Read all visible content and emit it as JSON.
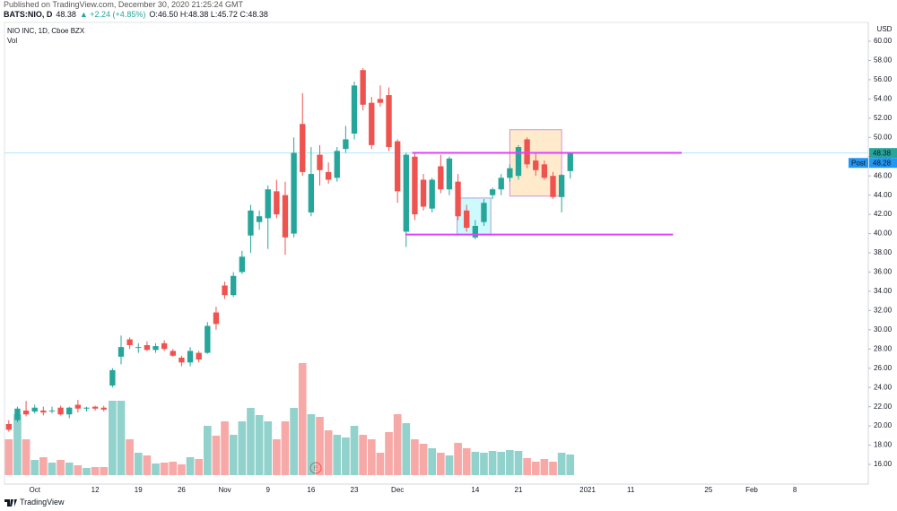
{
  "header": {
    "published": "Published on TradingView.com, December 30, 2020 21:25:24 GMT",
    "symbol": "BATS:NIO, D",
    "last": "48.38",
    "change": "▲ +2.24 (+4.85%)",
    "ohlc_text": "O:46.50 H:48.38 L:45.72 C:48.38"
  },
  "footer": {
    "brand": "TradingView"
  },
  "chart_data": {
    "type": "candlestick",
    "title": "NIO INC, 1D, Cboe BZX",
    "volume_label": "Vol",
    "currency": "USD",
    "earnings_marker": "E",
    "up_color": "#26a69a",
    "down_color": "#ef5350",
    "grid": false,
    "categories": [
      null,
      null,
      null,
      "Oct",
      null,
      null,
      null,
      null,
      null,
      null,
      "12",
      null,
      null,
      null,
      null,
      "19",
      null,
      null,
      null,
      null,
      "26",
      null,
      null,
      null,
      null,
      "Nov",
      null,
      null,
      null,
      null,
      "9",
      null,
      null,
      null,
      null,
      "16",
      null,
      null,
      null,
      null,
      "23",
      null,
      null,
      null,
      null,
      "Dec",
      null,
      null,
      null,
      null,
      null,
      null,
      null,
      null,
      "14",
      null,
      null,
      null,
      null,
      "21",
      null,
      null,
      null,
      null,
      null,
      null,
      null,
      "2021",
      null,
      null,
      null,
      null,
      "11",
      null,
      null,
      null,
      null,
      null,
      null,
      null,
      null,
      "25",
      null,
      null,
      null,
      null,
      "Feb",
      null,
      null,
      null,
      null,
      "8",
      null,
      null,
      null,
      null,
      null,
      null,
      null,
      null
    ],
    "open": [
      20.2,
      20.6,
      21.6,
      21.5,
      21.6,
      21.6,
      21.9,
      21.2,
      22.2,
      21.8,
      22.0,
      21.9,
      24.2,
      27.2,
      29.0,
      28.2,
      28.4,
      27.9,
      28.6,
      27.8,
      27.1,
      26.6,
      27.6,
      27.6,
      31.8,
      34.6,
      33.6,
      36.0,
      39.8,
      41.2,
      41.6,
      44.4,
      44.0,
      40.0,
      51.4,
      42.2,
      48.2,
      46.4,
      45.8,
      48.8,
      50.4,
      57.0,
      53.6,
      54.0,
      54.4,
      49.6,
      40.2,
      48.0,
      45.6,
      42.6,
      47.0,
      44.6,
      45.4,
      42.4,
      39.6,
      41.2,
      44.0,
      44.6,
      45.8,
      46.0,
      49.8,
      47.6,
      47.2,
      46.0,
      43.8,
      46.5,
      null,
      null,
      null,
      null,
      null,
      null,
      null,
      null,
      null,
      null,
      null,
      null,
      null,
      null,
      null,
      null,
      null,
      null,
      null,
      null,
      null,
      null,
      null,
      null,
      null,
      null,
      null,
      null,
      null,
      null,
      null,
      null,
      null,
      null
    ],
    "high": [
      20.6,
      22.0,
      22.6,
      22.2,
      22.0,
      22.0,
      22.1,
      22.0,
      22.7,
      22.0,
      22.1,
      22.1,
      26.0,
      29.4,
      29.2,
      28.6,
      28.8,
      28.6,
      28.9,
      28.0,
      27.3,
      28.2,
      27.8,
      30.8,
      32.4,
      35.0,
      36.0,
      38.2,
      43.0,
      42.4,
      45.0,
      45.6,
      45.4,
      50.0,
      54.6,
      49.0,
      49.2,
      47.4,
      49.0,
      51.2,
      55.8,
      57.2,
      54.2,
      55.4,
      55.2,
      49.8,
      48.4,
      48.4,
      46.2,
      45.8,
      48.2,
      48.0,
      46.2,
      43.0,
      41.4,
      43.6,
      44.8,
      46.2,
      47.2,
      49.2,
      50.0,
      48.4,
      47.6,
      46.4,
      46.2,
      48.38,
      null,
      null,
      null,
      null,
      null,
      null,
      null,
      null,
      null,
      null,
      null,
      null,
      null,
      null,
      null,
      null,
      null,
      null,
      null,
      null,
      null,
      null,
      null,
      null,
      null,
      null,
      null,
      null,
      null,
      null,
      null,
      null,
      null,
      null
    ],
    "low": [
      19.4,
      20.4,
      21.0,
      21.3,
      21.1,
      21.3,
      21.1,
      20.8,
      21.4,
      21.5,
      21.6,
      21.5,
      24.0,
      26.4,
      28.0,
      27.6,
      27.8,
      27.6,
      27.8,
      27.2,
      26.2,
      26.2,
      26.6,
      27.5,
      30.0,
      33.2,
      33.4,
      35.8,
      38.0,
      40.4,
      38.4,
      41.6,
      37.8,
      39.6,
      46.0,
      41.8,
      45.0,
      45.2,
      45.4,
      48.4,
      49.8,
      52.8,
      48.8,
      53.2,
      48.6,
      43.2,
      38.6,
      41.4,
      42.4,
      42.2,
      44.2,
      44.0,
      41.4,
      40.2,
      39.4,
      40.8,
      43.6,
      44.0,
      45.4,
      45.6,
      46.8,
      46.0,
      45.6,
      43.6,
      42.2,
      45.72,
      null,
      null,
      null,
      null,
      null,
      null,
      null,
      null,
      null,
      null,
      null,
      null,
      null,
      null,
      null,
      null,
      null,
      null,
      null,
      null,
      null,
      null,
      null,
      null,
      null,
      null,
      null,
      null,
      null,
      null,
      null,
      null,
      null,
      null
    ],
    "close": [
      19.6,
      21.8,
      21.2,
      21.9,
      21.4,
      21.6,
      21.2,
      21.9,
      21.8,
      21.9,
      21.8,
      21.7,
      25.8,
      28.2,
      28.4,
      28.2,
      27.9,
      28.3,
      28.0,
      27.3,
      26.6,
      27.8,
      26.9,
      30.4,
      30.6,
      33.6,
      35.6,
      37.6,
      42.4,
      41.8,
      44.6,
      42.0,
      39.6,
      48.4,
      46.4,
      46.2,
      46.6,
      45.6,
      48.6,
      49.8,
      55.4,
      53.4,
      49.2,
      53.6,
      49.0,
      44.4,
      48.2,
      42.0,
      42.8,
      45.6,
      44.6,
      47.8,
      41.8,
      40.6,
      40.8,
      43.2,
      44.6,
      45.8,
      46.8,
      49.0,
      47.2,
      46.6,
      45.8,
      43.8,
      46.1,
      48.38,
      null,
      null,
      null,
      null,
      null,
      null,
      null,
      null,
      null,
      null,
      null,
      null,
      null,
      null,
      null,
      null,
      null,
      null,
      null,
      null,
      null,
      null,
      null,
      null,
      null,
      null,
      null,
      null,
      null,
      null,
      null,
      null,
      null,
      null
    ],
    "volume": [
      40,
      68,
      40,
      17,
      20,
      14,
      17,
      14,
      11,
      8,
      9,
      9,
      83,
      83,
      40,
      25,
      22,
      13,
      14,
      15,
      12,
      20,
      18,
      55,
      44,
      60,
      45,
      60,
      75,
      67,
      60,
      40,
      60,
      75,
      125,
      68,
      65,
      50,
      45,
      42,
      55,
      45,
      40,
      25,
      48,
      68,
      58,
      40,
      35,
      30,
      25,
      22,
      36,
      30,
      26,
      25,
      27,
      26,
      28,
      27,
      19,
      15,
      18,
      15,
      25,
      23,
      null,
      null,
      null,
      null,
      null,
      null,
      null,
      null,
      null,
      null,
      null,
      null,
      null,
      null,
      null,
      null,
      null,
      null,
      null,
      null,
      null,
      null,
      null,
      null,
      null,
      null,
      null,
      null,
      null,
      null,
      null,
      null,
      null,
      null
    ],
    "ylim": [
      13.95,
      61.96
    ],
    "yticks": [
      {
        "value": 16,
        "label": "16.00"
      },
      {
        "value": 18,
        "label": "18.00"
      },
      {
        "value": 20,
        "label": "20.00"
      },
      {
        "value": 22,
        "label": "22.00"
      },
      {
        "value": 24,
        "label": "24.00"
      },
      {
        "value": 26,
        "label": "26.00"
      },
      {
        "value": 28,
        "label": "28.00"
      },
      {
        "value": 30,
        "label": "30.00"
      },
      {
        "value": 32,
        "label": "32.00"
      },
      {
        "value": 34,
        "label": "34.00"
      },
      {
        "value": 36,
        "label": "36.00"
      },
      {
        "value": 38,
        "label": "38.00"
      },
      {
        "value": 40,
        "label": "40.00"
      },
      {
        "value": 42,
        "label": "42.00"
      },
      {
        "value": 44,
        "label": "44.00"
      },
      {
        "value": 46,
        "label": "46.00"
      },
      {
        "value": 48,
        "label": "48.00"
      },
      {
        "value": 50,
        "label": "50.00"
      },
      {
        "value": 52,
        "label": "52.00"
      },
      {
        "value": 54,
        "label": "54.00"
      },
      {
        "value": 56,
        "label": "56.00"
      },
      {
        "value": 58,
        "label": "58.00"
      },
      {
        "value": 60,
        "label": "60.00"
      }
    ],
    "price_tags": [
      {
        "value": 48.38,
        "color": "#26a69a"
      },
      {
        "name": "Post",
        "value": 48.28,
        "color": "#2196f3"
      }
    ],
    "levels": [
      {
        "x": [
          46.7,
          77.9
        ],
        "y": 48.4,
        "color": "#e040fb"
      },
      {
        "x": [
          45.9,
          76.9
        ],
        "y": 39.9,
        "color": "#e040fb"
      }
    ],
    "boxes": [
      {
        "x": [
          58.0,
          64.0
        ],
        "y": [
          43.9,
          50.8
        ],
        "color": "#ff9800",
        "border": "#ce93d8"
      },
      {
        "x": [
          51.9,
          55.8
        ],
        "y": [
          39.9,
          43.7
        ],
        "color": "#00e5ff",
        "border": "#b39ddb"
      }
    ]
  }
}
